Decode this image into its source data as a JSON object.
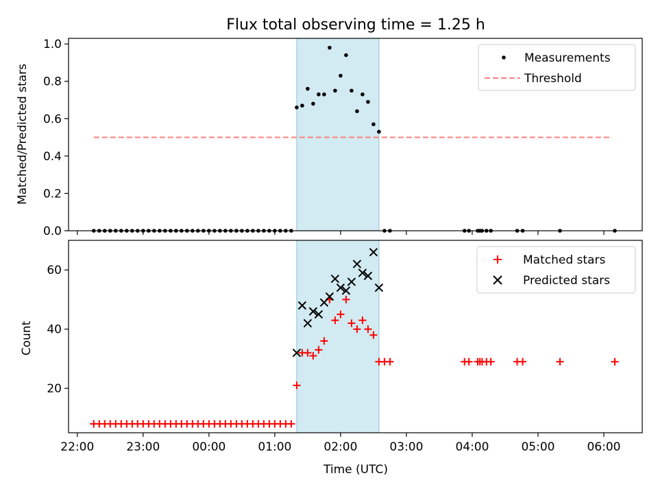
{
  "chart_data": [
    {
      "type": "scatter",
      "title": "Flux total observing time = 1.25 h",
      "xlabel": "",
      "ylabel": "Matched/Predicted stars",
      "ylim": [
        0.0,
        1.03
      ],
      "yticks": [
        "0.0",
        "0.2",
        "0.4",
        "0.6",
        "0.8",
        "1.0"
      ],
      "x_axis_shared": true,
      "highlight_span": {
        "start": "01:20",
        "end": "02:35",
        "color": "#add8e6"
      },
      "legend": {
        "placement": "top-right",
        "entries": [
          "Measurements",
          "Threshold"
        ]
      },
      "series": [
        {
          "name": "Measurements",
          "marker": "dot",
          "color": "#000000",
          "x": [
            "22:15",
            "22:20",
            "22:25",
            "22:30",
            "22:35",
            "22:40",
            "22:45",
            "22:50",
            "22:55",
            "23:00",
            "23:05",
            "23:10",
            "23:15",
            "23:20",
            "23:25",
            "23:30",
            "23:35",
            "23:40",
            "23:45",
            "23:50",
            "23:55",
            "00:00",
            "00:05",
            "00:10",
            "00:15",
            "00:20",
            "00:25",
            "00:30",
            "00:35",
            "00:40",
            "00:45",
            "00:50",
            "00:55",
            "01:00",
            "01:05",
            "01:10",
            "01:15",
            "01:20",
            "01:25",
            "01:30",
            "01:35",
            "01:40",
            "01:45",
            "01:50",
            "01:55",
            "02:00",
            "02:05",
            "02:10",
            "02:15",
            "02:20",
            "02:25",
            "02:30",
            "02:35",
            "02:40",
            "02:45",
            "03:53",
            "03:57",
            "04:05",
            "04:07",
            "04:09",
            "04:13",
            "04:17",
            "04:41",
            "04:46",
            "05:20",
            "06:10"
          ],
          "y": [
            0,
            0,
            0,
            0,
            0,
            0,
            0,
            0,
            0,
            0,
            0,
            0,
            0,
            0,
            0,
            0,
            0,
            0,
            0,
            0,
            0,
            0,
            0,
            0,
            0,
            0,
            0,
            0,
            0,
            0,
            0,
            0,
            0,
            0,
            0,
            0,
            0,
            0.66,
            0.67,
            0.76,
            0.68,
            0.73,
            0.73,
            0.98,
            0.75,
            0.83,
            0.94,
            0.75,
            0.64,
            0.73,
            0.69,
            0.57,
            0.53,
            0,
            0,
            0,
            0,
            0,
            0,
            0,
            0,
            0,
            0,
            0,
            0,
            0
          ]
        },
        {
          "name": "Threshold",
          "style": "dashed",
          "color": "#ff7f7f",
          "x": [
            "22:15",
            "06:05"
          ],
          "y": [
            0.5,
            0.5
          ]
        }
      ]
    },
    {
      "type": "scatter",
      "title": "",
      "xlabel": "Time (UTC)",
      "ylabel": "Count",
      "ylim": [
        5,
        70
      ],
      "yticks": [
        "20",
        "40",
        "60"
      ],
      "xticks": [
        "22:00",
        "23:00",
        "00:00",
        "01:00",
        "02:00",
        "03:00",
        "04:00",
        "05:00",
        "06:00"
      ],
      "highlight_span": {
        "start": "01:20",
        "end": "02:35",
        "color": "#add8e6"
      },
      "legend": {
        "placement": "top-right",
        "entries": [
          "Matched stars",
          "Predicted stars"
        ]
      },
      "series": [
        {
          "name": "Matched stars",
          "marker": "plus",
          "color": "#ff0000",
          "x": [
            "22:15",
            "22:20",
            "22:25",
            "22:30",
            "22:35",
            "22:40",
            "22:45",
            "22:50",
            "22:55",
            "23:00",
            "23:05",
            "23:10",
            "23:15",
            "23:20",
            "23:25",
            "23:30",
            "23:35",
            "23:40",
            "23:45",
            "23:50",
            "23:55",
            "00:00",
            "00:05",
            "00:10",
            "00:15",
            "00:20",
            "00:25",
            "00:30",
            "00:35",
            "00:40",
            "00:45",
            "00:50",
            "00:55",
            "01:00",
            "01:05",
            "01:10",
            "01:15",
            "01:20",
            "01:25",
            "01:30",
            "01:35",
            "01:40",
            "01:45",
            "01:50",
            "01:55",
            "02:00",
            "02:05",
            "02:10",
            "02:15",
            "02:20",
            "02:25",
            "02:30",
            "02:35",
            "02:40",
            "02:45",
            "03:53",
            "03:57",
            "04:05",
            "04:07",
            "04:09",
            "04:13",
            "04:17",
            "04:41",
            "04:46",
            "05:20",
            "06:10"
          ],
          "y": [
            8,
            8,
            8,
            8,
            8,
            8,
            8,
            8,
            8,
            8,
            8,
            8,
            8,
            8,
            8,
            8,
            8,
            8,
            8,
            8,
            8,
            8,
            8,
            8,
            8,
            8,
            8,
            8,
            8,
            8,
            8,
            8,
            8,
            8,
            8,
            8,
            8,
            21,
            32,
            32,
            31,
            33,
            36,
            50,
            43,
            45,
            50,
            42,
            40,
            43,
            40,
            38,
            29,
            29,
            29,
            29,
            29,
            29,
            29,
            29,
            29,
            29,
            29,
            29,
            29,
            29
          ]
        },
        {
          "name": "Predicted stars",
          "marker": "x",
          "color": "#000000",
          "x": [
            "01:20",
            "01:25",
            "01:30",
            "01:35",
            "01:40",
            "01:45",
            "01:50",
            "01:55",
            "02:00",
            "02:05",
            "02:10",
            "02:15",
            "02:20",
            "02:25",
            "02:30",
            "02:35"
          ],
          "y": [
            32,
            48,
            42,
            46,
            45,
            49,
            51,
            57,
            54,
            53,
            56,
            62,
            59,
            58,
            66,
            54
          ]
        }
      ]
    }
  ]
}
